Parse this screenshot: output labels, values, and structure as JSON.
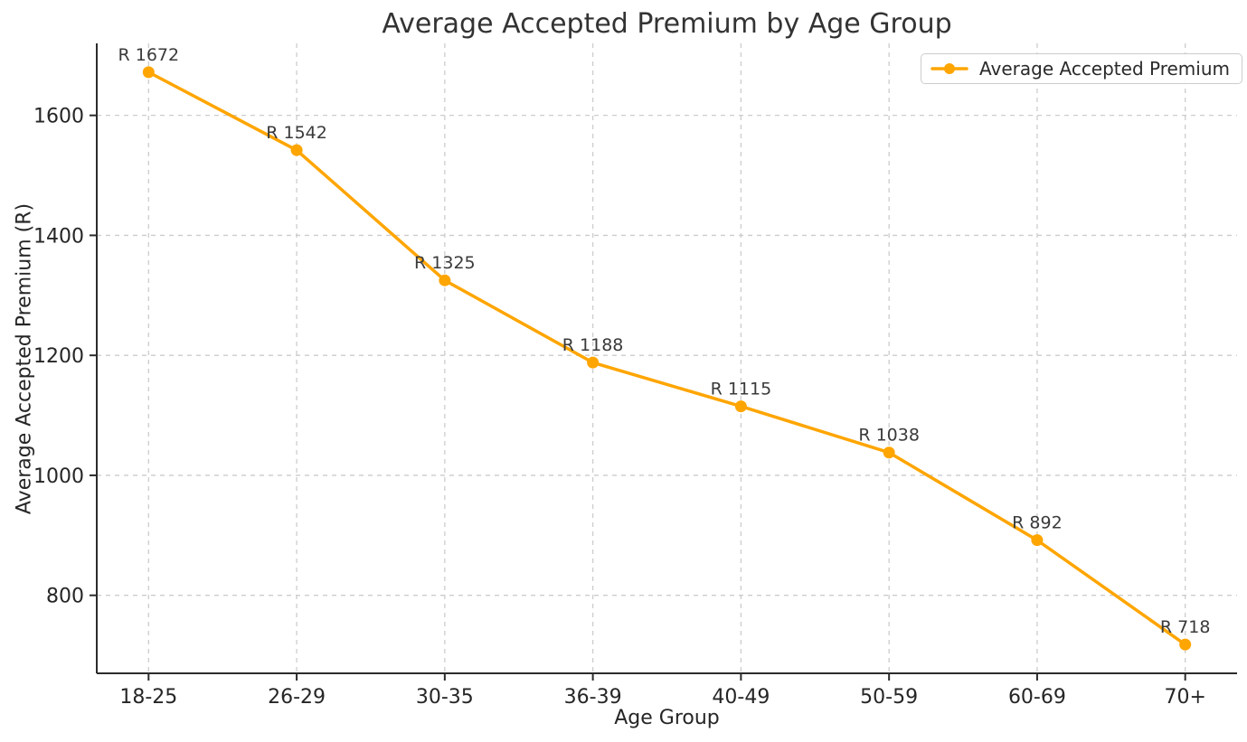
{
  "chart_data": {
    "type": "line",
    "title": "Average Accepted Premium by Age Group",
    "xlabel": "Age Group",
    "ylabel": "Average Accepted Premium (R)",
    "categories": [
      "18-25",
      "26-29",
      "30-35",
      "36-39",
      "40-49",
      "50-59",
      "60-69",
      "70+"
    ],
    "series": [
      {
        "name": "Average Accepted Premium",
        "values": [
          1672,
          1542,
          1325,
          1188,
          1115,
          1038,
          892,
          718
        ],
        "point_labels": [
          "R 1672",
          "R 1542",
          "R 1325",
          "R 1188",
          "R 1115",
          "R 1038",
          "R 892",
          "R 718"
        ]
      }
    ],
    "yticks": [
      800,
      1000,
      1200,
      1400,
      1600
    ],
    "ylim": [
      670,
      1720
    ],
    "grid": true,
    "grid_style": "dashed",
    "legend_position": "upper right",
    "marker": "circle",
    "colors": {
      "line": "#FFA500",
      "grid": "#cccccc",
      "spine": "#2b2b2b",
      "text": "#262626",
      "label_text": "#3a3a3a",
      "background": "#ffffff"
    }
  }
}
